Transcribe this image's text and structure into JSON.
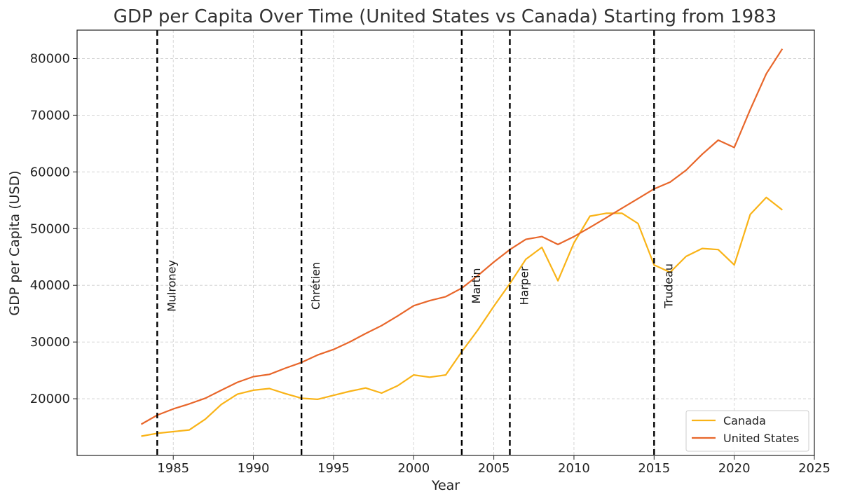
{
  "chart_data": {
    "type": "line",
    "title": "GDP per Capita Over Time (United States vs Canada) Starting from 1983",
    "xlabel": "Year",
    "ylabel": "GDP per Capita (USD)",
    "xlim": [
      1979,
      2025
    ],
    "ylim": [
      10000,
      85000
    ],
    "xticks": [
      1985,
      1990,
      1995,
      2000,
      2005,
      2010,
      2015,
      2020,
      2025
    ],
    "yticks": [
      20000,
      30000,
      40000,
      50000,
      60000,
      70000,
      80000
    ],
    "grid": true,
    "legend_position": "bottom-right",
    "x": [
      1983,
      1984,
      1985,
      1986,
      1987,
      1988,
      1989,
      1990,
      1991,
      1992,
      1993,
      1994,
      1995,
      1996,
      1997,
      1998,
      1999,
      2000,
      2001,
      2002,
      2003,
      2004,
      2005,
      2006,
      2007,
      2008,
      2009,
      2010,
      2011,
      2012,
      2013,
      2014,
      2015,
      2016,
      2017,
      2018,
      2019,
      2020,
      2021,
      2022,
      2023
    ],
    "series": [
      {
        "name": "Canada",
        "color": "#F9B317",
        "values": [
          13400,
          13900,
          14200,
          14500,
          16400,
          19000,
          20800,
          21500,
          21800,
          20900,
          20100,
          19900,
          20600,
          21300,
          21900,
          21000,
          22300,
          24200,
          23800,
          24200,
          28300,
          32100,
          36300,
          40300,
          44600,
          46700,
          40800,
          47500,
          52200,
          52700,
          52700,
          50900,
          43600,
          42300,
          45100,
          46500,
          46300,
          43600,
          52500,
          55500,
          53300
        ]
      },
      {
        "name": "United States",
        "color": "#E8662A",
        "values": [
          15500,
          17100,
          18200,
          19100,
          20100,
          21500,
          22900,
          23900,
          24300,
          25400,
          26400,
          27700,
          28700,
          30000,
          31500,
          32900,
          34600,
          36400,
          37300,
          38000,
          39500,
          41700,
          44100,
          46300,
          48100,
          48600,
          47200,
          48600,
          50200,
          51900,
          53600,
          55300,
          57000,
          58200,
          60300,
          63100,
          65600,
          64300,
          71000,
          77300,
          81700
        ]
      }
    ],
    "annotations": [
      {
        "label": "Mulroney",
        "x": 1984
      },
      {
        "label": "Chrétien",
        "x": 1993
      },
      {
        "label": "Martin",
        "x": 2003
      },
      {
        "label": "Harper",
        "x": 2006
      },
      {
        "label": "Trudeau",
        "x": 2015
      }
    ]
  }
}
